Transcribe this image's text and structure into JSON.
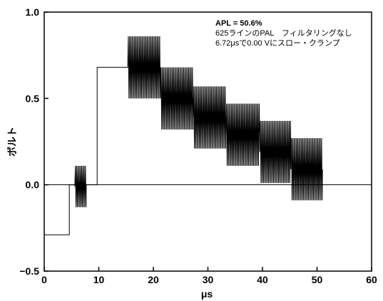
{
  "chart_data": {
    "type": "line",
    "title": "",
    "xlabel": "μs",
    "ylabel": "ボルト",
    "xlim": [
      0,
      60
    ],
    "ylim": [
      -0.5,
      1.0
    ],
    "x_ticks": [
      0,
      10,
      20,
      30,
      40,
      50,
      60
    ],
    "x_tick_labels": [
      "0",
      "10",
      "20",
      "30",
      "40",
      "50",
      "60"
    ],
    "y_ticks": [
      -0.5,
      0.0,
      0.5,
      1.0
    ],
    "y_tick_labels": [
      "−0.5",
      "0.0",
      "0.5",
      "1.0"
    ],
    "reference_line_y": 0.0,
    "annotations": [
      "APL = 50.6%",
      "625ラインのPAL　フィルタリングなし",
      "6.72μsで0.00 Vにスロー・クランプ"
    ],
    "series": [
      {
        "color": "#000000",
        "segments": [
          {
            "x0": 0.0,
            "x1": 4.6,
            "level": -0.29,
            "amplitude": 0.0
          },
          {
            "x0": 4.6,
            "x1": 5.6,
            "level": 0.0,
            "amplitude": 0.0
          },
          {
            "x0": 5.6,
            "x1": 7.7,
            "level": -0.01,
            "amplitude": 0.12
          },
          {
            "x0": 7.7,
            "x1": 9.7,
            "level": 0.0,
            "amplitude": 0.0
          },
          {
            "x0": 9.7,
            "x1": 15.3,
            "level": 0.68,
            "amplitude": 0.0
          },
          {
            "x0": 15.3,
            "x1": 21.3,
            "level": 0.68,
            "amplitude": 0.18
          },
          {
            "x0": 21.3,
            "x1": 27.3,
            "level": 0.5,
            "amplitude": 0.18
          },
          {
            "x0": 27.3,
            "x1": 33.3,
            "level": 0.39,
            "amplitude": 0.18
          },
          {
            "x0": 33.3,
            "x1": 39.5,
            "level": 0.29,
            "amplitude": 0.18
          },
          {
            "x0": 39.5,
            "x1": 45.2,
            "level": 0.19,
            "amplitude": 0.18
          },
          {
            "x0": 45.2,
            "x1": 51.0,
            "level": 0.09,
            "amplitude": 0.18
          }
        ],
        "oscillation_period_us": 0.23
      }
    ]
  }
}
